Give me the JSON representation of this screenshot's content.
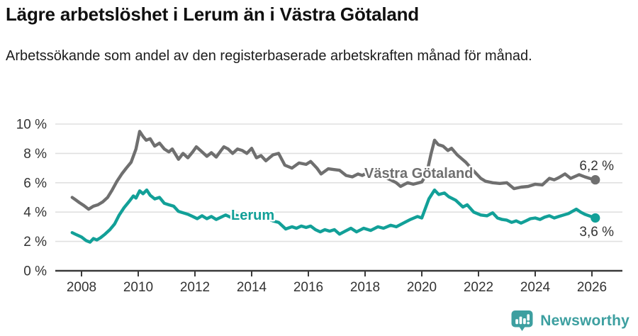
{
  "header": {
    "title": "Lägre arbetslöshet i Lerum än i Västra Götaland",
    "subtitle": "Arbetssökande som andel av den registerbaserade arbetskraften månad för månad."
  },
  "footer": {
    "brand": "Newsworthy",
    "logo_icon": "bar-chart-pin-icon"
  },
  "colors": {
    "vastra_gotaland": "#6f6f6f",
    "lerum": "#12a098",
    "axis": "#3a3a3a",
    "grid": "#e0e0e0",
    "tick_text": "#333333",
    "value_label_text": "#333333",
    "brand_teal": "#3d9fa0"
  },
  "chart_data": {
    "type": "line",
    "title": "Lägre arbetslöshet i Lerum än i Västra Götaland",
    "subtitle": "Arbetssökande som andel av den registerbaserade arbetskraften månad för månad.",
    "unit": "%",
    "grid": "horizontal",
    "legend_position": "inline-series-labels",
    "xlim": [
      2007.5,
      2027.3
    ],
    "ylim": [
      0,
      10.3
    ],
    "x_ticks": [
      2008,
      2010,
      2012,
      2014,
      2016,
      2018,
      2020,
      2022,
      2024,
      2026
    ],
    "y_ticks": [
      {
        "value": 0,
        "label": "0 %"
      },
      {
        "value": 2,
        "label": "2 %"
      },
      {
        "value": 4,
        "label": "4 %"
      },
      {
        "value": 6,
        "label": "6 %"
      },
      {
        "value": 8,
        "label": "8 %"
      },
      {
        "value": 10,
        "label": "10 %"
      }
    ],
    "series": [
      {
        "name": "Västra Götaland",
        "color_key": "vastra_gotaland",
        "end_label": "6,2 %",
        "last_value": 6.2,
        "points": [
          [
            2007.67,
            5.0
          ],
          [
            2007.78,
            4.85
          ],
          [
            2007.92,
            4.65
          ],
          [
            2008.08,
            4.45
          ],
          [
            2008.25,
            4.2
          ],
          [
            2008.42,
            4.4
          ],
          [
            2008.58,
            4.5
          ],
          [
            2008.75,
            4.7
          ],
          [
            2008.92,
            5.0
          ],
          [
            2009.08,
            5.5
          ],
          [
            2009.25,
            6.1
          ],
          [
            2009.42,
            6.6
          ],
          [
            2009.58,
            7.0
          ],
          [
            2009.75,
            7.4
          ],
          [
            2009.92,
            8.3
          ],
          [
            2010.05,
            9.5
          ],
          [
            2010.17,
            9.15
          ],
          [
            2010.28,
            8.9
          ],
          [
            2010.42,
            9.0
          ],
          [
            2010.58,
            8.5
          ],
          [
            2010.75,
            8.7
          ],
          [
            2010.92,
            8.3
          ],
          [
            2011.08,
            8.1
          ],
          [
            2011.2,
            8.3
          ],
          [
            2011.42,
            7.6
          ],
          [
            2011.58,
            8.0
          ],
          [
            2011.75,
            7.7
          ],
          [
            2011.92,
            8.1
          ],
          [
            2012.05,
            8.45
          ],
          [
            2012.25,
            8.1
          ],
          [
            2012.42,
            7.8
          ],
          [
            2012.58,
            8.05
          ],
          [
            2012.75,
            7.75
          ],
          [
            2012.92,
            8.2
          ],
          [
            2013.02,
            8.45
          ],
          [
            2013.17,
            8.3
          ],
          [
            2013.33,
            8.0
          ],
          [
            2013.5,
            8.3
          ],
          [
            2013.67,
            8.2
          ],
          [
            2013.83,
            8.0
          ],
          [
            2014.0,
            8.35
          ],
          [
            2014.17,
            7.7
          ],
          [
            2014.33,
            7.85
          ],
          [
            2014.5,
            7.5
          ],
          [
            2014.75,
            7.9
          ],
          [
            2014.95,
            8.0
          ],
          [
            2015.17,
            7.2
          ],
          [
            2015.42,
            7.0
          ],
          [
            2015.67,
            7.35
          ],
          [
            2015.92,
            7.25
          ],
          [
            2016.08,
            7.45
          ],
          [
            2016.3,
            7.0
          ],
          [
            2016.45,
            6.6
          ],
          [
            2016.7,
            6.95
          ],
          [
            2016.9,
            6.9
          ],
          [
            2017.1,
            6.85
          ],
          [
            2017.33,
            6.5
          ],
          [
            2017.55,
            6.4
          ],
          [
            2017.75,
            6.6
          ],
          [
            2017.9,
            6.5
          ],
          [
            2018.1,
            6.7
          ],
          [
            2018.3,
            6.5
          ],
          [
            2018.6,
            6.45
          ],
          [
            2018.9,
            6.2
          ],
          [
            2019.1,
            6.0
          ],
          [
            2019.25,
            5.75
          ],
          [
            2019.5,
            6.0
          ],
          [
            2019.7,
            5.9
          ],
          [
            2020.0,
            6.05
          ],
          [
            2020.17,
            6.6
          ],
          [
            2020.33,
            8.0
          ],
          [
            2020.45,
            8.9
          ],
          [
            2020.58,
            8.6
          ],
          [
            2020.75,
            8.5
          ],
          [
            2020.92,
            8.2
          ],
          [
            2021.05,
            8.35
          ],
          [
            2021.25,
            7.9
          ],
          [
            2021.55,
            7.4
          ],
          [
            2021.83,
            6.8
          ],
          [
            2022.08,
            6.3
          ],
          [
            2022.25,
            6.1
          ],
          [
            2022.5,
            6.0
          ],
          [
            2022.75,
            5.95
          ],
          [
            2023.0,
            6.0
          ],
          [
            2023.25,
            5.6
          ],
          [
            2023.5,
            5.7
          ],
          [
            2023.75,
            5.75
          ],
          [
            2024.0,
            5.9
          ],
          [
            2024.25,
            5.85
          ],
          [
            2024.5,
            6.3
          ],
          [
            2024.67,
            6.2
          ],
          [
            2024.83,
            6.35
          ],
          [
            2025.05,
            6.6
          ],
          [
            2025.25,
            6.3
          ],
          [
            2025.55,
            6.55
          ],
          [
            2025.75,
            6.4
          ],
          [
            2025.92,
            6.3
          ],
          [
            2026.12,
            6.2
          ]
        ]
      },
      {
        "name": "Lerum",
        "color_key": "lerum",
        "end_label": "3,6 %",
        "last_value": 3.6,
        "points": [
          [
            2007.67,
            2.6
          ],
          [
            2007.83,
            2.45
          ],
          [
            2008.0,
            2.3
          ],
          [
            2008.17,
            2.05
          ],
          [
            2008.3,
            1.95
          ],
          [
            2008.42,
            2.2
          ],
          [
            2008.54,
            2.1
          ],
          [
            2008.67,
            2.25
          ],
          [
            2008.83,
            2.5
          ],
          [
            2009.0,
            2.8
          ],
          [
            2009.17,
            3.2
          ],
          [
            2009.33,
            3.8
          ],
          [
            2009.5,
            4.3
          ],
          [
            2009.67,
            4.7
          ],
          [
            2009.83,
            5.1
          ],
          [
            2009.92,
            4.95
          ],
          [
            2010.05,
            5.45
          ],
          [
            2010.17,
            5.25
          ],
          [
            2010.3,
            5.5
          ],
          [
            2010.42,
            5.15
          ],
          [
            2010.58,
            4.9
          ],
          [
            2010.75,
            5.0
          ],
          [
            2010.92,
            4.6
          ],
          [
            2011.08,
            4.5
          ],
          [
            2011.25,
            4.4
          ],
          [
            2011.42,
            4.05
          ],
          [
            2011.58,
            3.95
          ],
          [
            2011.75,
            3.85
          ],
          [
            2011.92,
            3.7
          ],
          [
            2012.08,
            3.55
          ],
          [
            2012.25,
            3.75
          ],
          [
            2012.42,
            3.55
          ],
          [
            2012.58,
            3.7
          ],
          [
            2012.75,
            3.5
          ],
          [
            2012.92,
            3.65
          ],
          [
            2013.08,
            3.8
          ],
          [
            2013.25,
            3.65
          ],
          [
            2013.42,
            3.8
          ],
          [
            2013.58,
            3.7
          ],
          [
            2013.75,
            3.85
          ],
          [
            2013.92,
            3.7
          ],
          [
            2014.08,
            3.75
          ],
          [
            2014.25,
            3.6
          ],
          [
            2014.42,
            3.5
          ],
          [
            2014.58,
            3.55
          ],
          [
            2014.75,
            3.4
          ],
          [
            2014.95,
            3.3
          ],
          [
            2015.2,
            2.85
          ],
          [
            2015.42,
            3.0
          ],
          [
            2015.58,
            2.9
          ],
          [
            2015.75,
            3.05
          ],
          [
            2015.92,
            2.95
          ],
          [
            2016.08,
            3.05
          ],
          [
            2016.25,
            2.8
          ],
          [
            2016.42,
            2.65
          ],
          [
            2016.58,
            2.8
          ],
          [
            2016.75,
            2.7
          ],
          [
            2016.92,
            2.8
          ],
          [
            2017.1,
            2.5
          ],
          [
            2017.3,
            2.7
          ],
          [
            2017.5,
            2.9
          ],
          [
            2017.7,
            2.65
          ],
          [
            2017.95,
            2.9
          ],
          [
            2018.2,
            2.75
          ],
          [
            2018.45,
            3.0
          ],
          [
            2018.65,
            2.9
          ],
          [
            2018.9,
            3.1
          ],
          [
            2019.1,
            3.0
          ],
          [
            2019.4,
            3.3
          ],
          [
            2019.6,
            3.5
          ],
          [
            2019.85,
            3.7
          ],
          [
            2020.0,
            3.6
          ],
          [
            2020.25,
            4.9
          ],
          [
            2020.45,
            5.5
          ],
          [
            2020.6,
            5.2
          ],
          [
            2020.8,
            5.3
          ],
          [
            2020.95,
            5.05
          ],
          [
            2021.2,
            4.8
          ],
          [
            2021.45,
            4.35
          ],
          [
            2021.6,
            4.5
          ],
          [
            2021.83,
            4.0
          ],
          [
            2022.08,
            3.8
          ],
          [
            2022.3,
            3.75
          ],
          [
            2022.5,
            3.95
          ],
          [
            2022.67,
            3.6
          ],
          [
            2022.83,
            3.5
          ],
          [
            2023.0,
            3.45
          ],
          [
            2023.17,
            3.3
          ],
          [
            2023.33,
            3.4
          ],
          [
            2023.5,
            3.25
          ],
          [
            2023.67,
            3.4
          ],
          [
            2023.83,
            3.55
          ],
          [
            2024.0,
            3.6
          ],
          [
            2024.17,
            3.5
          ],
          [
            2024.33,
            3.65
          ],
          [
            2024.5,
            3.75
          ],
          [
            2024.67,
            3.6
          ],
          [
            2024.83,
            3.7
          ],
          [
            2025.0,
            3.8
          ],
          [
            2025.17,
            3.9
          ],
          [
            2025.45,
            4.2
          ],
          [
            2025.6,
            4.0
          ],
          [
            2025.75,
            3.85
          ],
          [
            2025.9,
            3.75
          ],
          [
            2026.12,
            3.6
          ]
        ]
      }
    ]
  }
}
